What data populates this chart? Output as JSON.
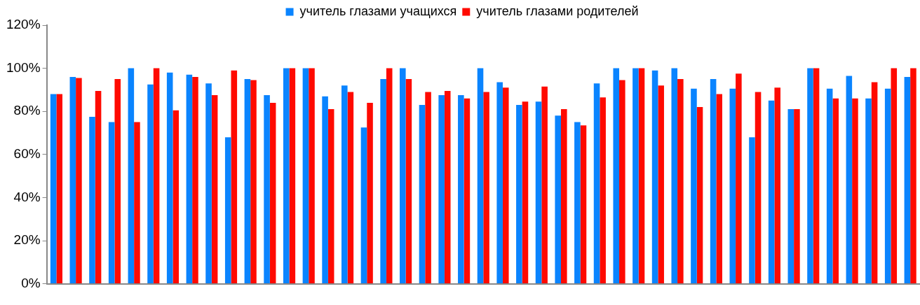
{
  "chart_data": {
    "type": "bar",
    "categories": [
      null,
      null,
      null,
      null,
      null,
      null,
      null,
      null,
      null,
      null,
      null,
      null,
      null,
      null,
      null,
      null,
      null,
      null,
      null,
      null,
      null,
      null,
      null,
      null,
      null,
      null,
      null,
      null,
      null,
      null,
      null,
      null,
      null,
      null,
      null,
      null,
      null,
      null,
      null,
      null,
      null,
      null,
      null,
      null,
      null
    ],
    "series": [
      {
        "name": "учитель глазами учащихся",
        "color": "#0a84ff",
        "values": [
          88,
          96,
          77.5,
          75,
          100,
          92.5,
          98,
          97,
          93,
          68,
          95,
          87.5,
          100,
          100,
          87,
          92,
          72.5,
          95,
          100,
          83,
          87.5,
          87.5,
          100,
          93.5,
          83,
          84.5,
          78,
          75,
          93,
          100,
          100,
          99,
          100,
          90.5,
          95,
          90.5,
          68,
          85,
          81,
          100,
          90.5,
          96.5,
          86,
          90.5,
          96
        ]
      },
      {
        "name": "учитель глазами родителей",
        "color": "#ff0a00",
        "values": [
          88,
          95.5,
          89.5,
          95,
          75,
          100,
          80.5,
          96,
          87.5,
          99,
          94.5,
          84,
          100,
          100,
          81,
          89,
          84,
          100,
          95,
          89,
          89.5,
          86,
          89,
          91,
          84.5,
          91.5,
          81,
          73.5,
          86.5,
          94.5,
          100,
          92,
          95,
          82,
          88,
          97.5,
          89,
          91,
          81,
          100,
          86,
          86,
          93.5,
          100,
          100
        ]
      }
    ],
    "ylim": [
      0,
      120
    ],
    "yticks": [
      {
        "value": 0,
        "label": "0%"
      },
      {
        "value": 20,
        "label": "20%"
      },
      {
        "value": 40,
        "label": "40%"
      },
      {
        "value": 60,
        "label": "60%"
      },
      {
        "value": 80,
        "label": "80%"
      },
      {
        "value": 100,
        "label": "100%"
      },
      {
        "value": 120,
        "label": "120%"
      }
    ],
    "legend": "top",
    "grid": false
  }
}
